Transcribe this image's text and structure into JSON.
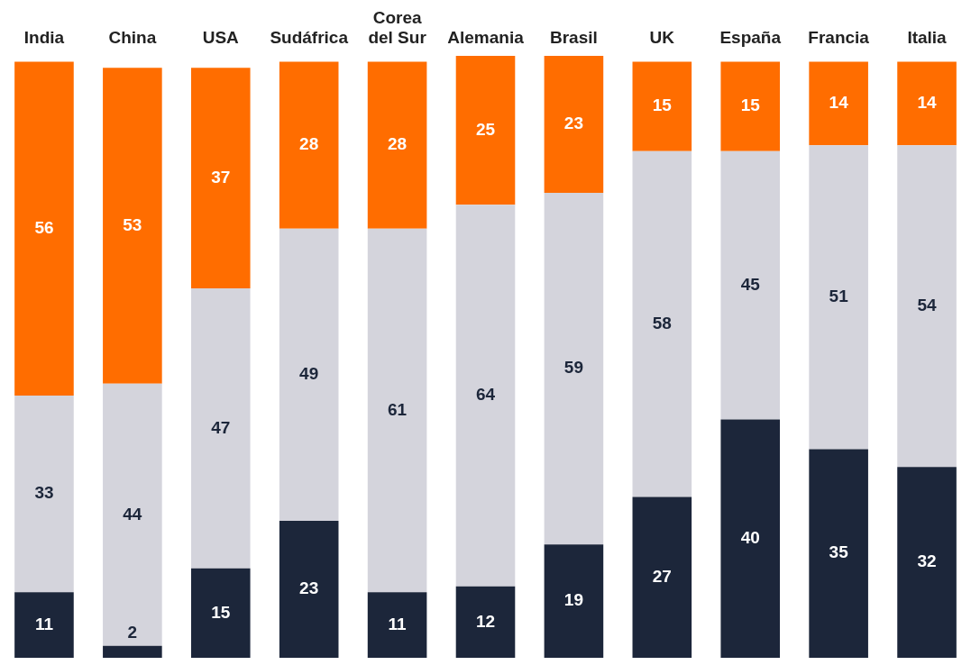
{
  "chart_data": {
    "type": "bar",
    "stacked": true,
    "data_labels": true,
    "categories": [
      "India",
      "China",
      "USA",
      "Sudáfrica",
      "Corea del Sur",
      "Alemania",
      "Brasil",
      "UK",
      "España",
      "Francia",
      "Italia"
    ],
    "series": [
      {
        "color": "#1c263a",
        "values": [
          11,
          2,
          15,
          23,
          11,
          12,
          19,
          27,
          40,
          35,
          32
        ]
      },
      {
        "color": "#d4d4dc",
        "values": [
          33,
          44,
          47,
          49,
          61,
          64,
          59,
          58,
          45,
          51,
          54
        ]
      },
      {
        "color": "#ff6d00",
        "values": [
          56,
          53,
          37,
          28,
          28,
          25,
          23,
          15,
          15,
          14,
          14
        ]
      }
    ]
  }
}
